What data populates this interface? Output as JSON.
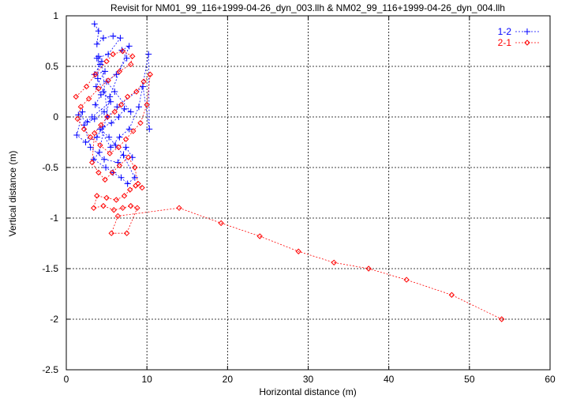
{
  "chart_data": {
    "type": "line",
    "title": "Revisit for NM01_99_116+1999-04-26_dyn_003.llh & NM02_99_116+1999-04-26_dyn_004.llh",
    "xlabel": "Horizontal distance (m)",
    "ylabel": "Vertical distance (m)",
    "xlim": [
      0,
      60
    ],
    "ylim": [
      -2.5,
      1
    ],
    "x_ticks": [
      "0",
      "10",
      "20",
      "30",
      "40",
      "50",
      "60"
    ],
    "y_ticks": [
      "1",
      "0.5",
      "0",
      "-0.5",
      "-1",
      "-1.5",
      "-2",
      "-2.5"
    ],
    "x_tick_values": [
      0,
      10,
      20,
      30,
      40,
      50,
      60
    ],
    "y_tick_values": [
      1,
      0.5,
      0,
      -0.5,
      -1,
      -1.5,
      -2,
      -2.5
    ],
    "grid": true,
    "legend_position": "top-right",
    "series": [
      {
        "name": "1-2",
        "color": "#0000ff",
        "marker": "plus",
        "points": [
          [
            3.5,
            0.92
          ],
          [
            4.0,
            0.85
          ],
          [
            3.8,
            0.72
          ],
          [
            4.6,
            0.78
          ],
          [
            5.8,
            0.8
          ],
          [
            6.7,
            0.78
          ],
          [
            5.2,
            0.62
          ],
          [
            3.8,
            0.58
          ],
          [
            4.2,
            0.52
          ],
          [
            3.5,
            0.42
          ],
          [
            4.8,
            0.45
          ],
          [
            3.7,
            0.3
          ],
          [
            4.3,
            0.22
          ],
          [
            3.6,
            0.12
          ],
          [
            4.7,
            0.05
          ],
          [
            3.5,
            -0.02
          ],
          [
            2.6,
            -0.05
          ],
          [
            1.5,
            0.02
          ],
          [
            2.0,
            0.05
          ],
          [
            1.3,
            -0.18
          ],
          [
            2.4,
            -0.25
          ],
          [
            3.8,
            -0.2
          ],
          [
            4.5,
            -0.1
          ],
          [
            5.6,
            -0.06
          ],
          [
            6.5,
            0.0
          ],
          [
            7.2,
            0.08
          ],
          [
            8.0,
            0.05
          ],
          [
            6.0,
            0.25
          ],
          [
            5.0,
            0.35
          ],
          [
            6.2,
            0.42
          ],
          [
            7.5,
            0.58
          ],
          [
            6.9,
            0.66
          ],
          [
            7.8,
            0.7
          ],
          [
            5.4,
            0.2
          ],
          [
            4.1,
            -0.35
          ],
          [
            3.4,
            -0.42
          ],
          [
            4.9,
            -0.5
          ],
          [
            5.8,
            -0.55
          ],
          [
            6.8,
            -0.6
          ],
          [
            7.6,
            -0.66
          ],
          [
            8.5,
            -0.6
          ],
          [
            7.1,
            -0.38
          ],
          [
            6.1,
            -0.28
          ],
          [
            5.3,
            -0.2
          ],
          [
            4.2,
            -0.12
          ],
          [
            5.5,
            -0.3
          ],
          [
            6.6,
            -0.2
          ],
          [
            7.8,
            -0.12
          ],
          [
            9.0,
            0.1
          ],
          [
            10.2,
            0.62
          ],
          [
            10.3,
            -0.12
          ],
          [
            9.5,
            0.3
          ],
          [
            6.3,
            0.1
          ],
          [
            5.1,
            0.0
          ],
          [
            4.4,
            0.55
          ],
          [
            4.0,
            0.6
          ],
          [
            3.9,
            0.38
          ],
          [
            4.6,
            0.25
          ],
          [
            5.5,
            0.15
          ],
          [
            3.2,
            0.0
          ],
          [
            2.2,
            -0.08
          ],
          [
            3.0,
            -0.3
          ],
          [
            4.7,
            -0.42
          ],
          [
            6.4,
            -0.45
          ],
          [
            7.4,
            -0.3
          ],
          [
            8.2,
            -0.4
          ]
        ]
      },
      {
        "name": "2-1",
        "color": "#ff0000",
        "marker": "diamond",
        "points": [
          [
            1.2,
            0.2
          ],
          [
            2.5,
            0.3
          ],
          [
            3.6,
            0.42
          ],
          [
            5.0,
            0.55
          ],
          [
            5.8,
            0.62
          ],
          [
            7.0,
            0.65
          ],
          [
            8.2,
            0.6
          ],
          [
            8.0,
            0.52
          ],
          [
            6.6,
            0.45
          ],
          [
            5.2,
            0.36
          ],
          [
            4.0,
            0.28
          ],
          [
            2.8,
            0.18
          ],
          [
            1.8,
            0.1
          ],
          [
            1.4,
            -0.02
          ],
          [
            2.2,
            -0.12
          ],
          [
            3.0,
            -0.2
          ],
          [
            4.2,
            -0.28
          ],
          [
            5.4,
            -0.36
          ],
          [
            6.5,
            -0.3
          ],
          [
            7.4,
            -0.22
          ],
          [
            8.3,
            -0.14
          ],
          [
            9.2,
            -0.06
          ],
          [
            10.0,
            0.12
          ],
          [
            10.4,
            0.42
          ],
          [
            9.6,
            0.35
          ],
          [
            8.7,
            0.25
          ],
          [
            7.6,
            0.2
          ],
          [
            6.8,
            0.12
          ],
          [
            6.0,
            0.05
          ],
          [
            5.1,
            0.0
          ],
          [
            4.3,
            -0.08
          ],
          [
            3.5,
            -0.16
          ],
          [
            3.2,
            -0.45
          ],
          [
            4.0,
            -0.55
          ],
          [
            4.8,
            -0.62
          ],
          [
            5.7,
            -0.55
          ],
          [
            6.6,
            -0.48
          ],
          [
            7.7,
            -0.4
          ],
          [
            8.5,
            -0.5
          ],
          [
            8.9,
            -0.66
          ],
          [
            9.4,
            -0.7
          ],
          [
            8.6,
            -0.68
          ],
          [
            7.9,
            -0.72
          ],
          [
            7.2,
            -0.78
          ],
          [
            6.2,
            -0.82
          ],
          [
            5.0,
            -0.8
          ],
          [
            3.8,
            -0.78
          ],
          [
            3.4,
            -0.9
          ],
          [
            4.6,
            -0.88
          ],
          [
            5.9,
            -0.92
          ],
          [
            7.0,
            -0.9
          ],
          [
            8.0,
            -0.88
          ],
          [
            8.8,
            -0.9
          ],
          [
            7.5,
            -1.15
          ],
          [
            5.6,
            -1.15
          ],
          [
            6.4,
            -0.98
          ],
          [
            14.0,
            -0.9
          ],
          [
            19.2,
            -1.05
          ],
          [
            24.0,
            -1.18
          ],
          [
            28.8,
            -1.33
          ],
          [
            33.2,
            -1.44
          ],
          [
            37.5,
            -1.5
          ],
          [
            42.2,
            -1.61
          ],
          [
            47.8,
            -1.76
          ],
          [
            54.0,
            -2.0
          ]
        ]
      }
    ]
  }
}
